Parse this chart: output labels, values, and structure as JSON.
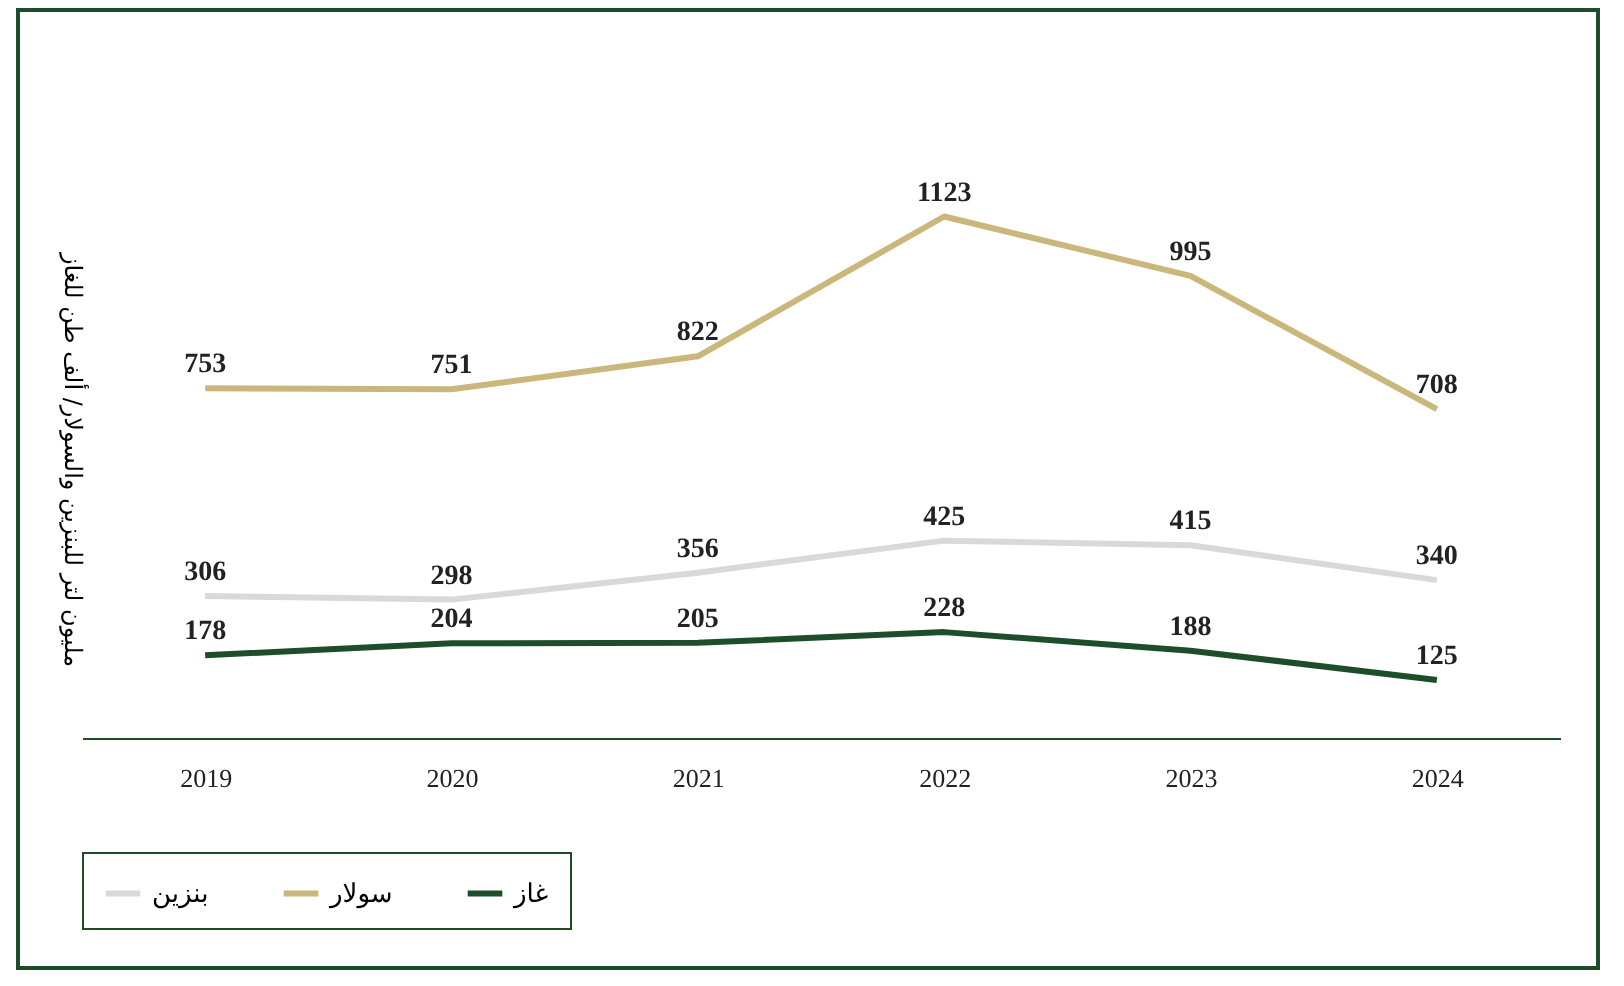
{
  "chart_data": {
    "type": "line",
    "ylabel": "مليون لتر للبنزين والسولار/ ألف طن للغاز",
    "categories": [
      "2019",
      "2020",
      "2021",
      "2022",
      "2023",
      "2024"
    ],
    "series": [
      {
        "name": "بنزين",
        "color": "#d9d9d9",
        "values": [
          306,
          298,
          356,
          425,
          415,
          340
        ]
      },
      {
        "name": "سولار",
        "color": "#c9b77c",
        "values": [
          753,
          751,
          822,
          1123,
          995,
          708
        ]
      },
      {
        "name": "غاز",
        "color": "#1e4d2b",
        "values": [
          178,
          204,
          205,
          228,
          188,
          125
        ]
      }
    ],
    "data_labels": true,
    "legend": "bottom",
    "grid": false,
    "marker": "none",
    "line_style": "solid"
  }
}
